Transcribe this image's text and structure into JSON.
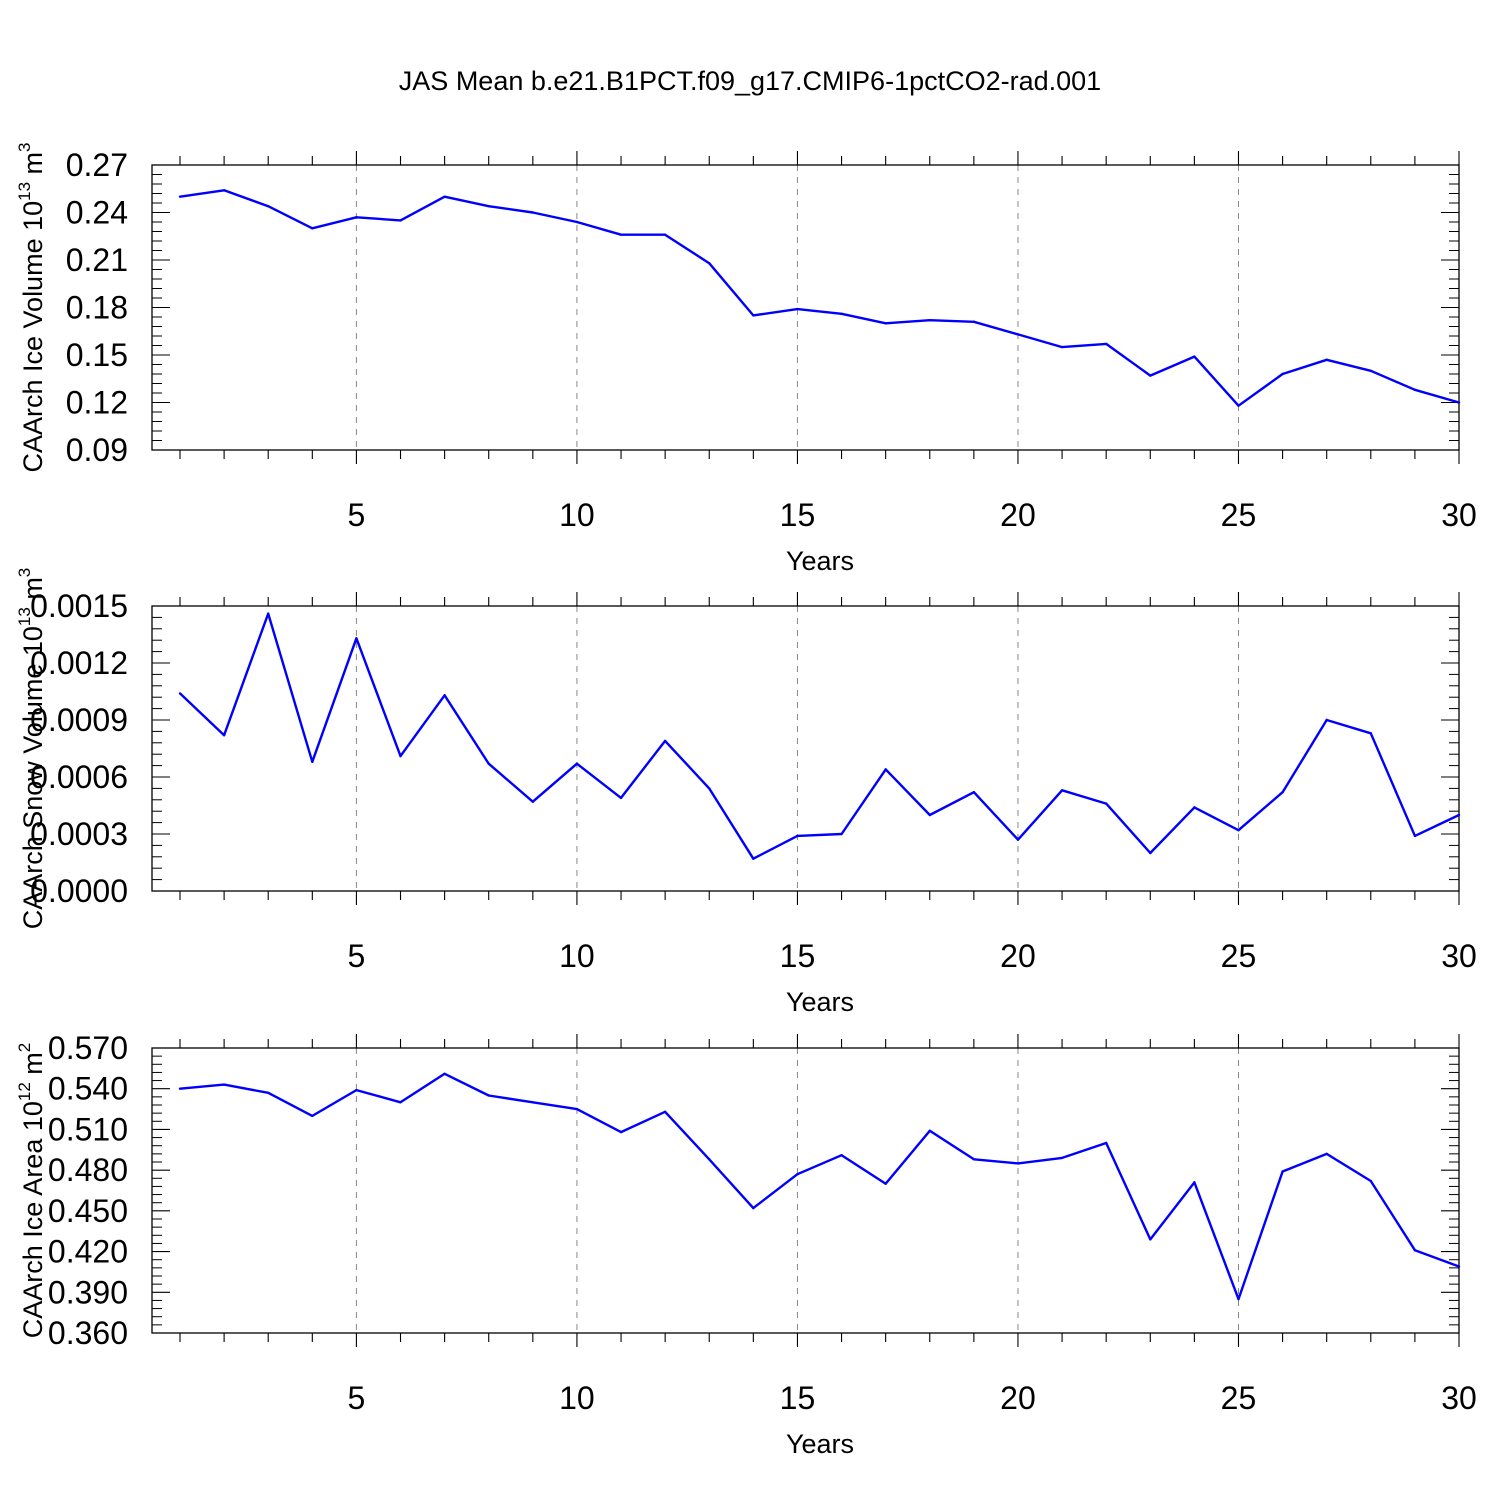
{
  "chart_data": {
    "title": "JAS Mean b.e21.B1PCT.f09_g17.CMIP6-1pctCO2-rad.001",
    "type": "line",
    "line_color": "#0000ff",
    "panels": [
      {
        "ylabel_main": "CAArch Ice Volume 10",
        "ylabel_exp": "13",
        "ylabel_unit": " m",
        "ylabel_unit_exp": "3",
        "xlabel": "Years",
        "xlim": [
          1,
          30
        ],
        "ylim": [
          0.09,
          0.27
        ],
        "yticks": [
          0.09,
          0.12,
          0.15,
          0.18,
          0.21,
          0.24,
          0.27
        ],
        "ytick_labels": [
          "0.09",
          "0.12",
          "0.15",
          "0.18",
          "0.21",
          "0.24",
          "0.27"
        ],
        "xticks": [
          5,
          10,
          15,
          20,
          25,
          30
        ],
        "xtick_labels": [
          "5",
          "10",
          "15",
          "20",
          "25",
          "30"
        ],
        "x": [
          1,
          2,
          3,
          4,
          5,
          6,
          7,
          8,
          9,
          10,
          11,
          12,
          13,
          14,
          15,
          16,
          17,
          18,
          19,
          20,
          21,
          22,
          23,
          24,
          25,
          26,
          27,
          28,
          29,
          30
        ],
        "values": [
          0.25,
          0.254,
          0.244,
          0.23,
          0.237,
          0.235,
          0.25,
          0.244,
          0.24,
          0.234,
          0.226,
          0.226,
          0.208,
          0.175,
          0.179,
          0.176,
          0.17,
          0.172,
          0.171,
          0.163,
          0.155,
          0.157,
          0.137,
          0.149,
          0.118,
          0.138,
          0.147,
          0.14,
          0.128,
          0.12
        ]
      },
      {
        "ylabel_main": "CAArch Snow Volume 10",
        "ylabel_exp": "13",
        "ylabel_unit": " m",
        "ylabel_unit_exp": "3",
        "xlabel": "Years",
        "xlim": [
          1,
          30
        ],
        "ylim": [
          0.0,
          0.0015
        ],
        "yticks": [
          0.0,
          0.0003,
          0.0006,
          0.0009,
          0.0012,
          0.0015
        ],
        "ytick_labels": [
          "0.0000",
          "0.0003",
          "0.0006",
          "0.0009",
          "0.0012",
          "0.0015"
        ],
        "xticks": [
          5,
          10,
          15,
          20,
          25,
          30
        ],
        "xtick_labels": [
          "5",
          "10",
          "15",
          "20",
          "25",
          "30"
        ],
        "x": [
          1,
          2,
          3,
          4,
          5,
          6,
          7,
          8,
          9,
          10,
          11,
          12,
          13,
          14,
          15,
          16,
          17,
          18,
          19,
          20,
          21,
          22,
          23,
          24,
          25,
          26,
          27,
          28,
          29,
          30
        ],
        "values": [
          0.00104,
          0.00082,
          0.00146,
          0.00068,
          0.00133,
          0.00071,
          0.00103,
          0.00067,
          0.00047,
          0.00067,
          0.00049,
          0.00079,
          0.00054,
          0.00017,
          0.00029,
          0.0003,
          0.00064,
          0.0004,
          0.00052,
          0.00027,
          0.00053,
          0.00046,
          0.0002,
          0.00044,
          0.00032,
          0.00052,
          0.0009,
          0.00083,
          0.00029,
          0.0004
        ]
      },
      {
        "ylabel_main": "CAArch Ice Area 10",
        "ylabel_exp": "12",
        "ylabel_unit": " m",
        "ylabel_unit_exp": "2",
        "xlabel": "Years",
        "xlim": [
          1,
          30
        ],
        "ylim": [
          0.36,
          0.57
        ],
        "yticks": [
          0.36,
          0.39,
          0.42,
          0.45,
          0.48,
          0.51,
          0.54,
          0.57
        ],
        "ytick_labels": [
          "0.360",
          "0.390",
          "0.420",
          "0.450",
          "0.480",
          "0.510",
          "0.540",
          "0.570"
        ],
        "xticks": [
          5,
          10,
          15,
          20,
          25,
          30
        ],
        "xtick_labels": [
          "5",
          "10",
          "15",
          "20",
          "25",
          "30"
        ],
        "x": [
          1,
          2,
          3,
          4,
          5,
          6,
          7,
          8,
          9,
          10,
          11,
          12,
          13,
          14,
          15,
          16,
          17,
          18,
          19,
          20,
          21,
          22,
          23,
          24,
          25,
          26,
          27,
          28,
          29,
          30
        ],
        "values": [
          0.54,
          0.543,
          0.537,
          0.52,
          0.539,
          0.53,
          0.551,
          0.535,
          0.53,
          0.525,
          0.508,
          0.523,
          0.488,
          0.452,
          0.477,
          0.491,
          0.47,
          0.509,
          0.488,
          0.485,
          0.489,
          0.5,
          0.429,
          0.471,
          0.385,
          0.479,
          0.492,
          0.472,
          0.421,
          0.409
        ]
      }
    ]
  }
}
